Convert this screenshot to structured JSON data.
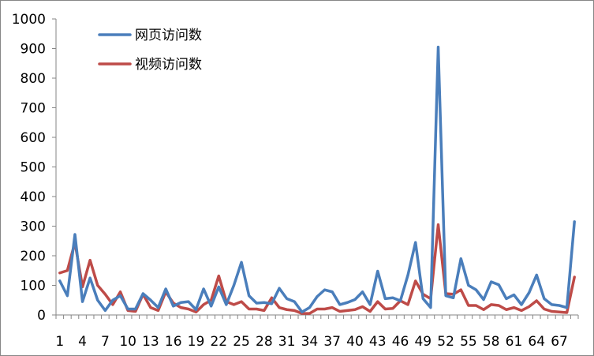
{
  "chart_data": {
    "type": "line",
    "title": "",
    "xlabel": "",
    "ylabel": "",
    "ylim": [
      0,
      1000
    ],
    "yticks": [
      0,
      100,
      200,
      300,
      400,
      500,
      600,
      700,
      800,
      900,
      1000
    ],
    "x": [
      1,
      2,
      3,
      4,
      5,
      6,
      7,
      8,
      9,
      10,
      11,
      12,
      13,
      14,
      15,
      16,
      17,
      18,
      19,
      20,
      21,
      22,
      23,
      24,
      25,
      26,
      27,
      28,
      29,
      30,
      31,
      32,
      33,
      34,
      35,
      36,
      37,
      38,
      39,
      40,
      41,
      42,
      43,
      44,
      45,
      46,
      47,
      48,
      49,
      50,
      51,
      52,
      53,
      54,
      55,
      56,
      57,
      58,
      59,
      60,
      61,
      62,
      63,
      64,
      65,
      66,
      67,
      68,
      69
    ],
    "xtick_labels": [
      "1",
      "4",
      "7",
      "10",
      "13",
      "16",
      "19",
      "22",
      "25",
      "28",
      "31",
      "34",
      "37",
      "40",
      "43",
      "46",
      "49",
      "52",
      "55",
      "58",
      "61",
      "64",
      "67"
    ],
    "xtick_positions": [
      1,
      4,
      7,
      10,
      13,
      16,
      19,
      22,
      25,
      28,
      31,
      34,
      37,
      40,
      43,
      46,
      49,
      52,
      55,
      58,
      61,
      64,
      67
    ],
    "grid": false,
    "legend_position": "top-left",
    "series": [
      {
        "name": "网页访问数",
        "color": "#4a7ebb",
        "values": [
          115,
          65,
          272,
          45,
          125,
          50,
          15,
          50,
          65,
          20,
          20,
          72,
          50,
          25,
          88,
          30,
          42,
          45,
          18,
          88,
          30,
          95,
          35,
          100,
          178,
          65,
          40,
          42,
          38,
          90,
          55,
          45,
          10,
          25,
          62,
          85,
          78,
          35,
          42,
          52,
          78,
          35,
          148,
          55,
          58,
          48,
          135,
          245,
          55,
          25,
          905,
          65,
          58,
          190,
          100,
          85,
          52,
          112,
          102,
          55,
          68,
          35,
          75,
          135,
          55,
          35,
          32,
          25,
          315
        ]
      },
      {
        "name": "视频访问数",
        "color": "#be4b48",
        "values": [
          142,
          150,
          245,
          95,
          185,
          100,
          70,
          35,
          78,
          15,
          12,
          70,
          25,
          15,
          78,
          40,
          25,
          20,
          10,
          35,
          50,
          132,
          45,
          35,
          45,
          20,
          20,
          15,
          58,
          25,
          18,
          15,
          5,
          5,
          20,
          20,
          25,
          12,
          15,
          18,
          28,
          12,
          45,
          20,
          22,
          48,
          35,
          115,
          70,
          55,
          305,
          72,
          70,
          85,
          32,
          32,
          18,
          35,
          32,
          18,
          25,
          15,
          28,
          48,
          20,
          12,
          10,
          8,
          128
        ]
      }
    ]
  }
}
